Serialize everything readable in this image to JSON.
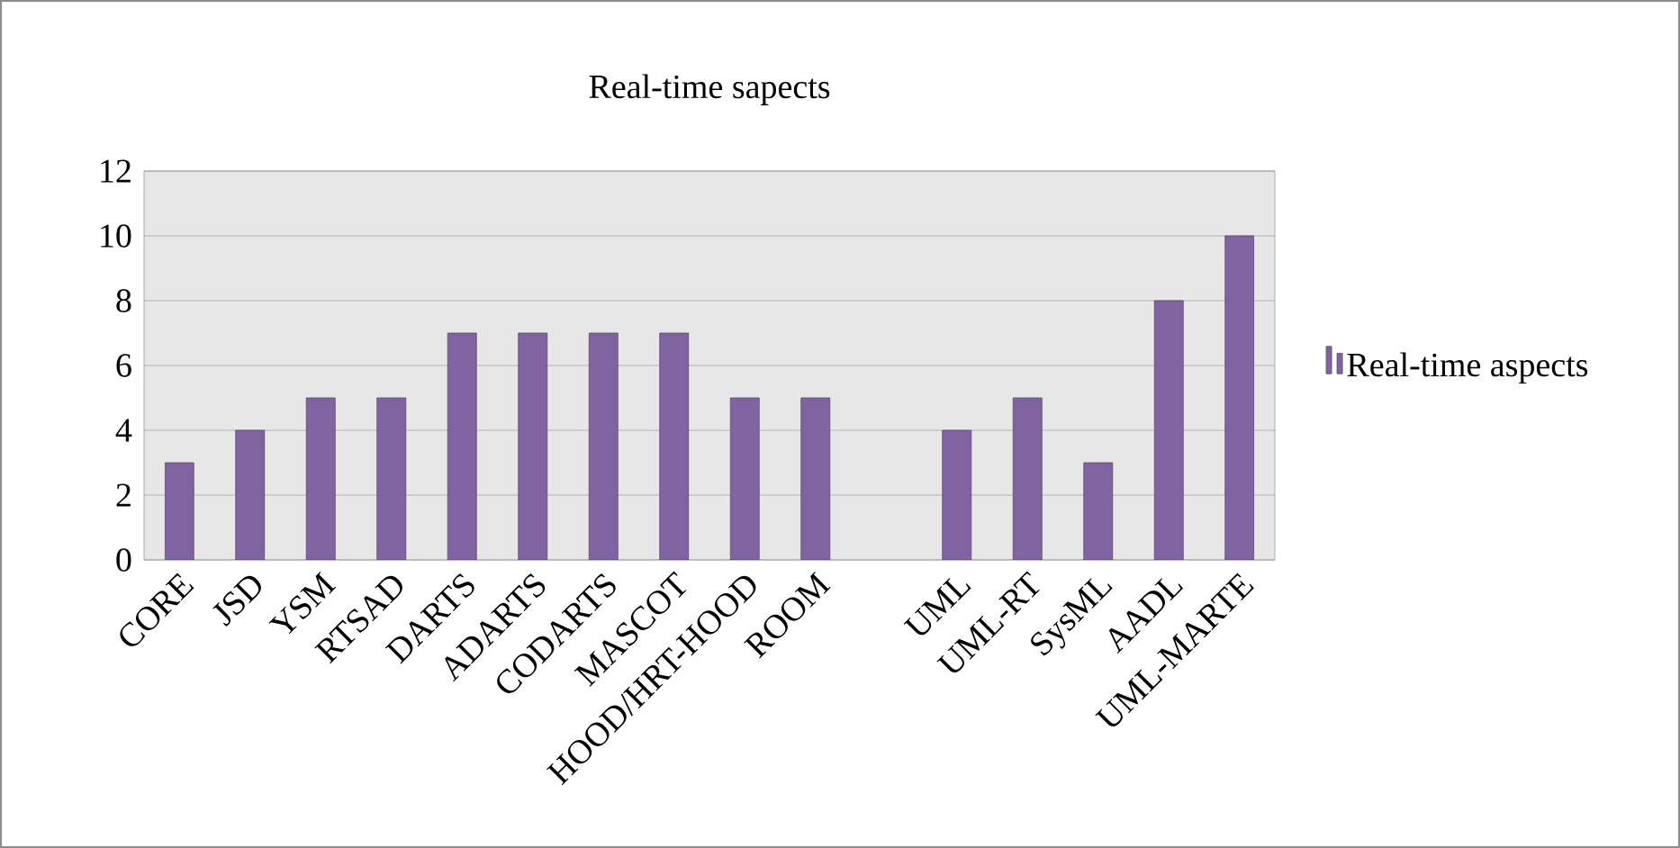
{
  "chart_data": {
    "type": "bar",
    "title": "Real-time sapects",
    "categories": [
      "CORE",
      "JSD",
      "YSM",
      "RTSAD",
      "DARTS",
      "ADARTS",
      "CODARTS",
      "MASCOT",
      "HOOD/HRT-HOOD",
      "ROOM",
      null,
      "UML",
      "UML-RT",
      "SysML",
      "AADL",
      "UML-MARTE"
    ],
    "series": [
      {
        "name": "Real-time aspects",
        "color": "#8064a2",
        "values": [
          3,
          4,
          5,
          5,
          7,
          7,
          7,
          7,
          5,
          5,
          null,
          4,
          5,
          3,
          8,
          10
        ]
      }
    ],
    "ylim": [
      0,
      12
    ],
    "yticks": [
      0,
      2,
      4,
      6,
      8,
      10,
      12
    ],
    "grid": "y",
    "legend": "right"
  }
}
